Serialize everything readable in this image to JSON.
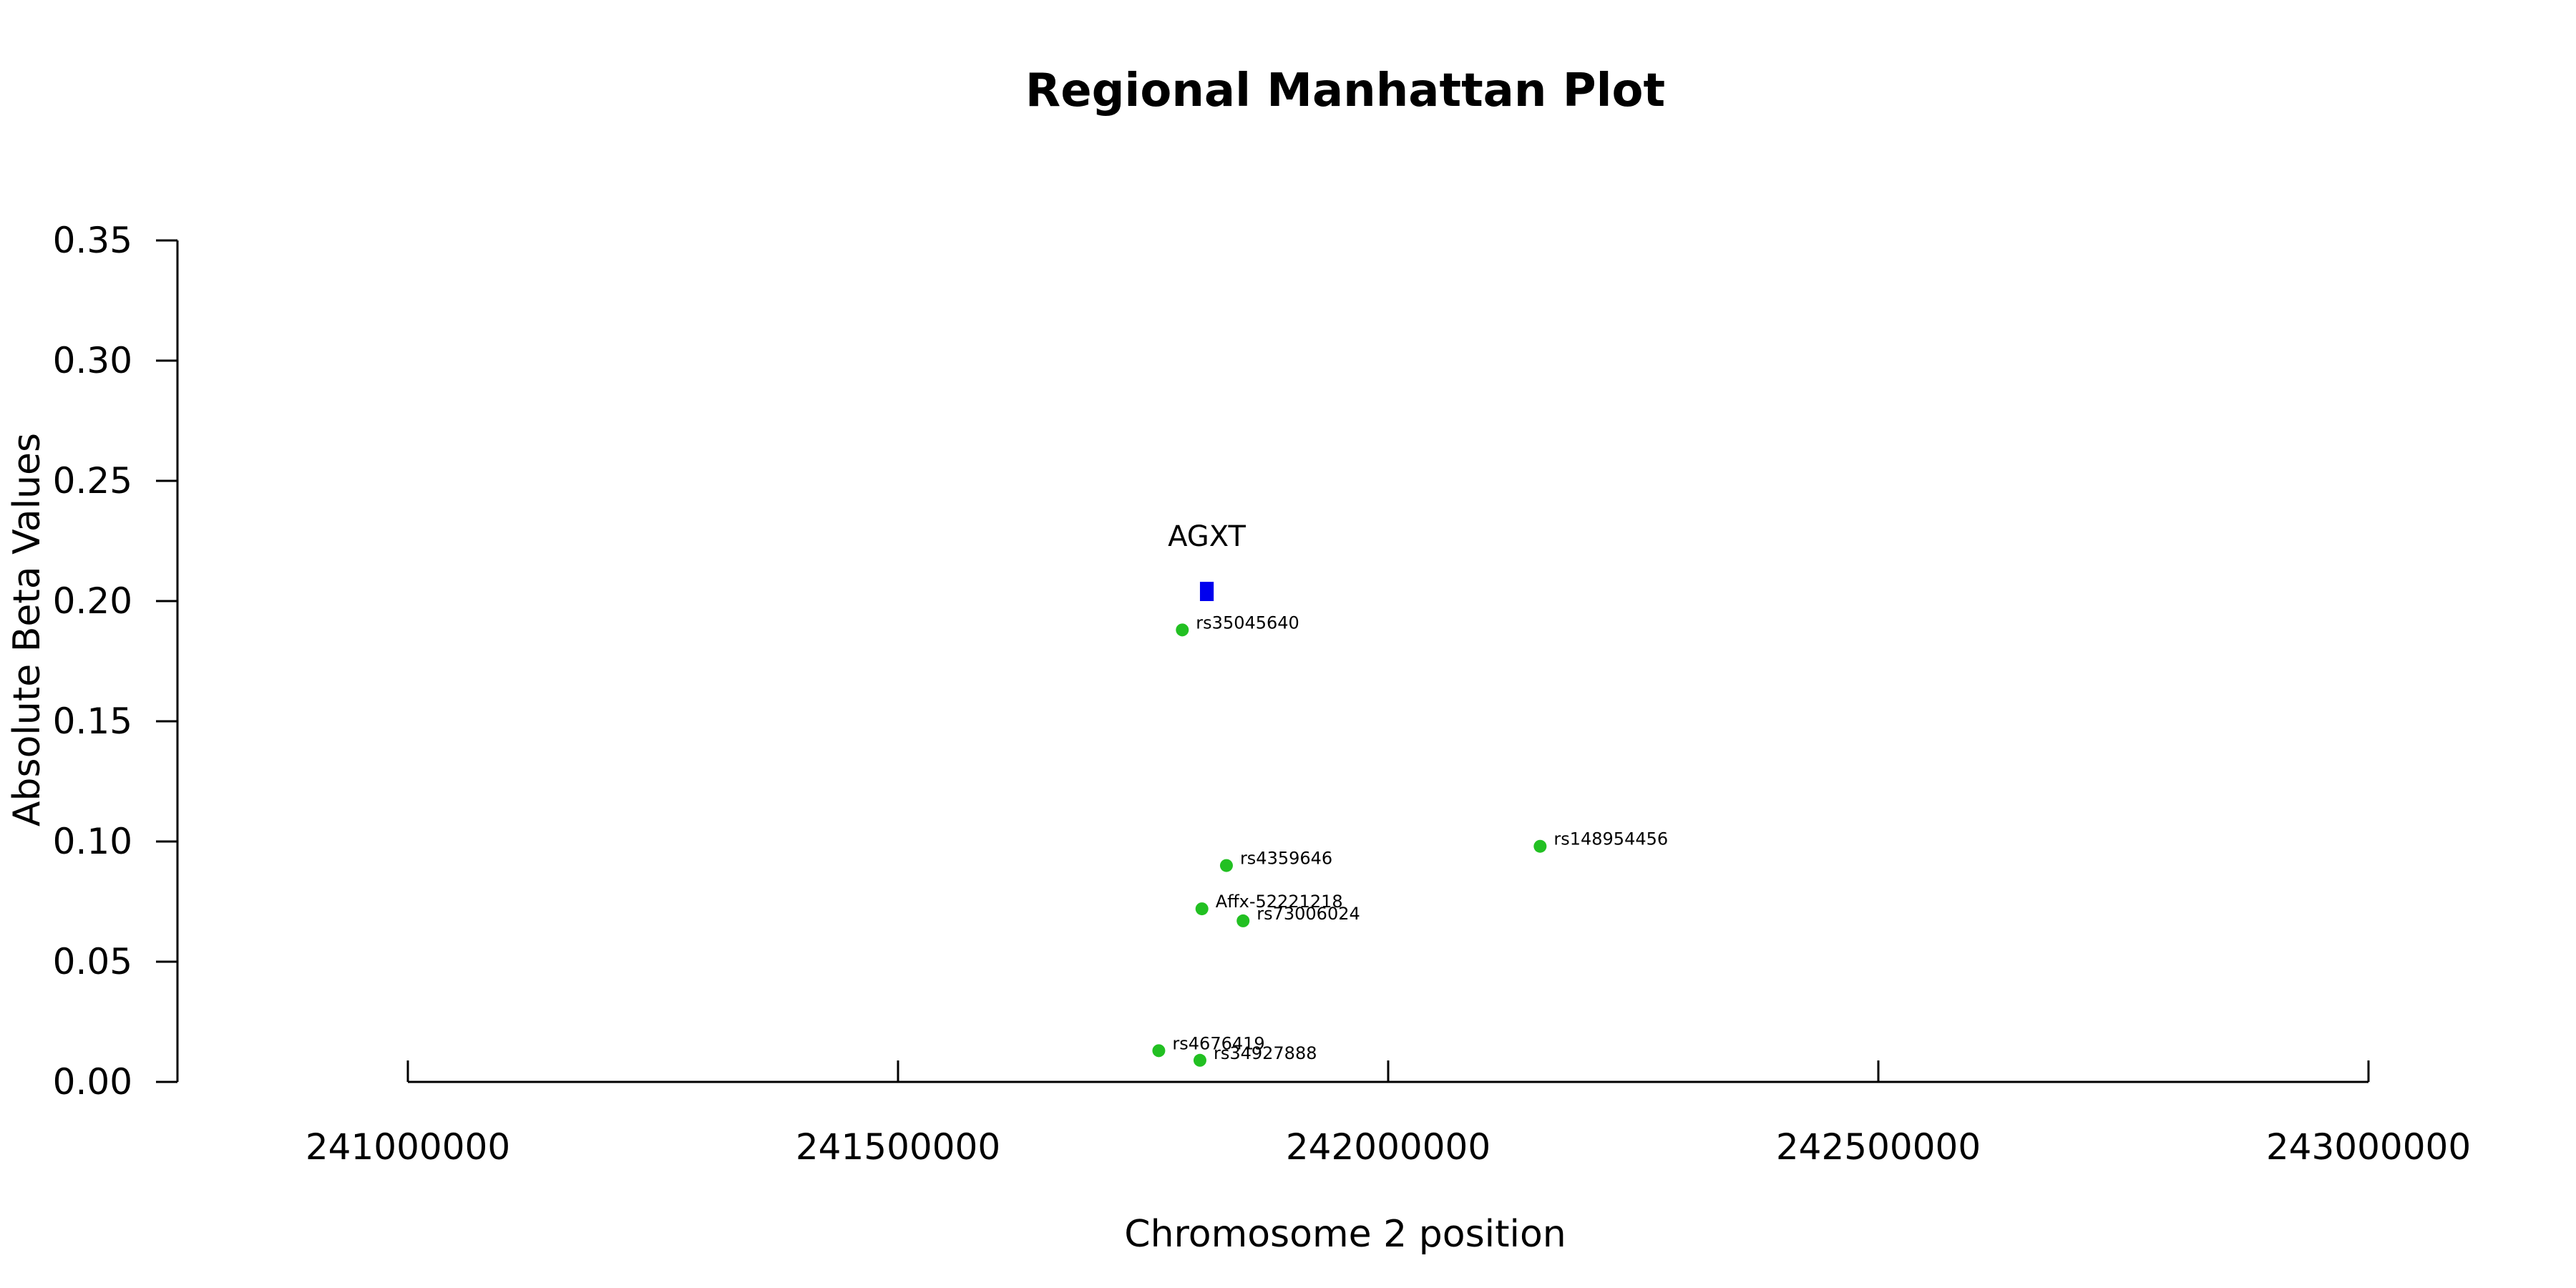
{
  "chart_data": {
    "type": "scatter",
    "title": "Regional Manhattan Plot",
    "xlabel": "Chromosome 2 position",
    "ylabel": "Absolute Beta Values",
    "xlim": [
      240800000,
      243000000
    ],
    "ylim": [
      0,
      0.35
    ],
    "x_ticks": [
      241000000,
      241500000,
      242000000,
      242500000,
      243000000
    ],
    "x_tick_labels": [
      "241000000",
      "241500000",
      "242000000",
      "242500000",
      "243000000"
    ],
    "y_ticks": [
      0,
      0.05,
      0.1,
      0.15,
      0.2,
      0.25,
      0.3,
      0.35
    ],
    "y_tick_labels": [
      "0.00",
      "0.05",
      "0.10",
      "0.15",
      "0.20",
      "0.25",
      "0.30",
      "0.35"
    ],
    "grid": false,
    "legend": "none",
    "point_color": "#22c022",
    "points": [
      {
        "label": "rs35045640",
        "x": 241790000,
        "y": 0.188
      },
      {
        "label": "rs4359646",
        "x": 241835000,
        "y": 0.09
      },
      {
        "label": "rs148954456",
        "x": 242155000,
        "y": 0.098
      },
      {
        "label": "Affx-52221218",
        "x": 241810000,
        "y": 0.072
      },
      {
        "label": "rs73006024",
        "x": 241852000,
        "y": 0.067
      },
      {
        "label": "rs4676419",
        "x": 241766000,
        "y": 0.013
      },
      {
        "label": "rs34927888",
        "x": 241808000,
        "y": 0.009
      }
    ],
    "gene": {
      "label": "AGXT",
      "x_start": 241808000,
      "x_end": 241822000,
      "y_low": 0.2,
      "y_high": 0.208,
      "color": "#0000ee"
    }
  }
}
